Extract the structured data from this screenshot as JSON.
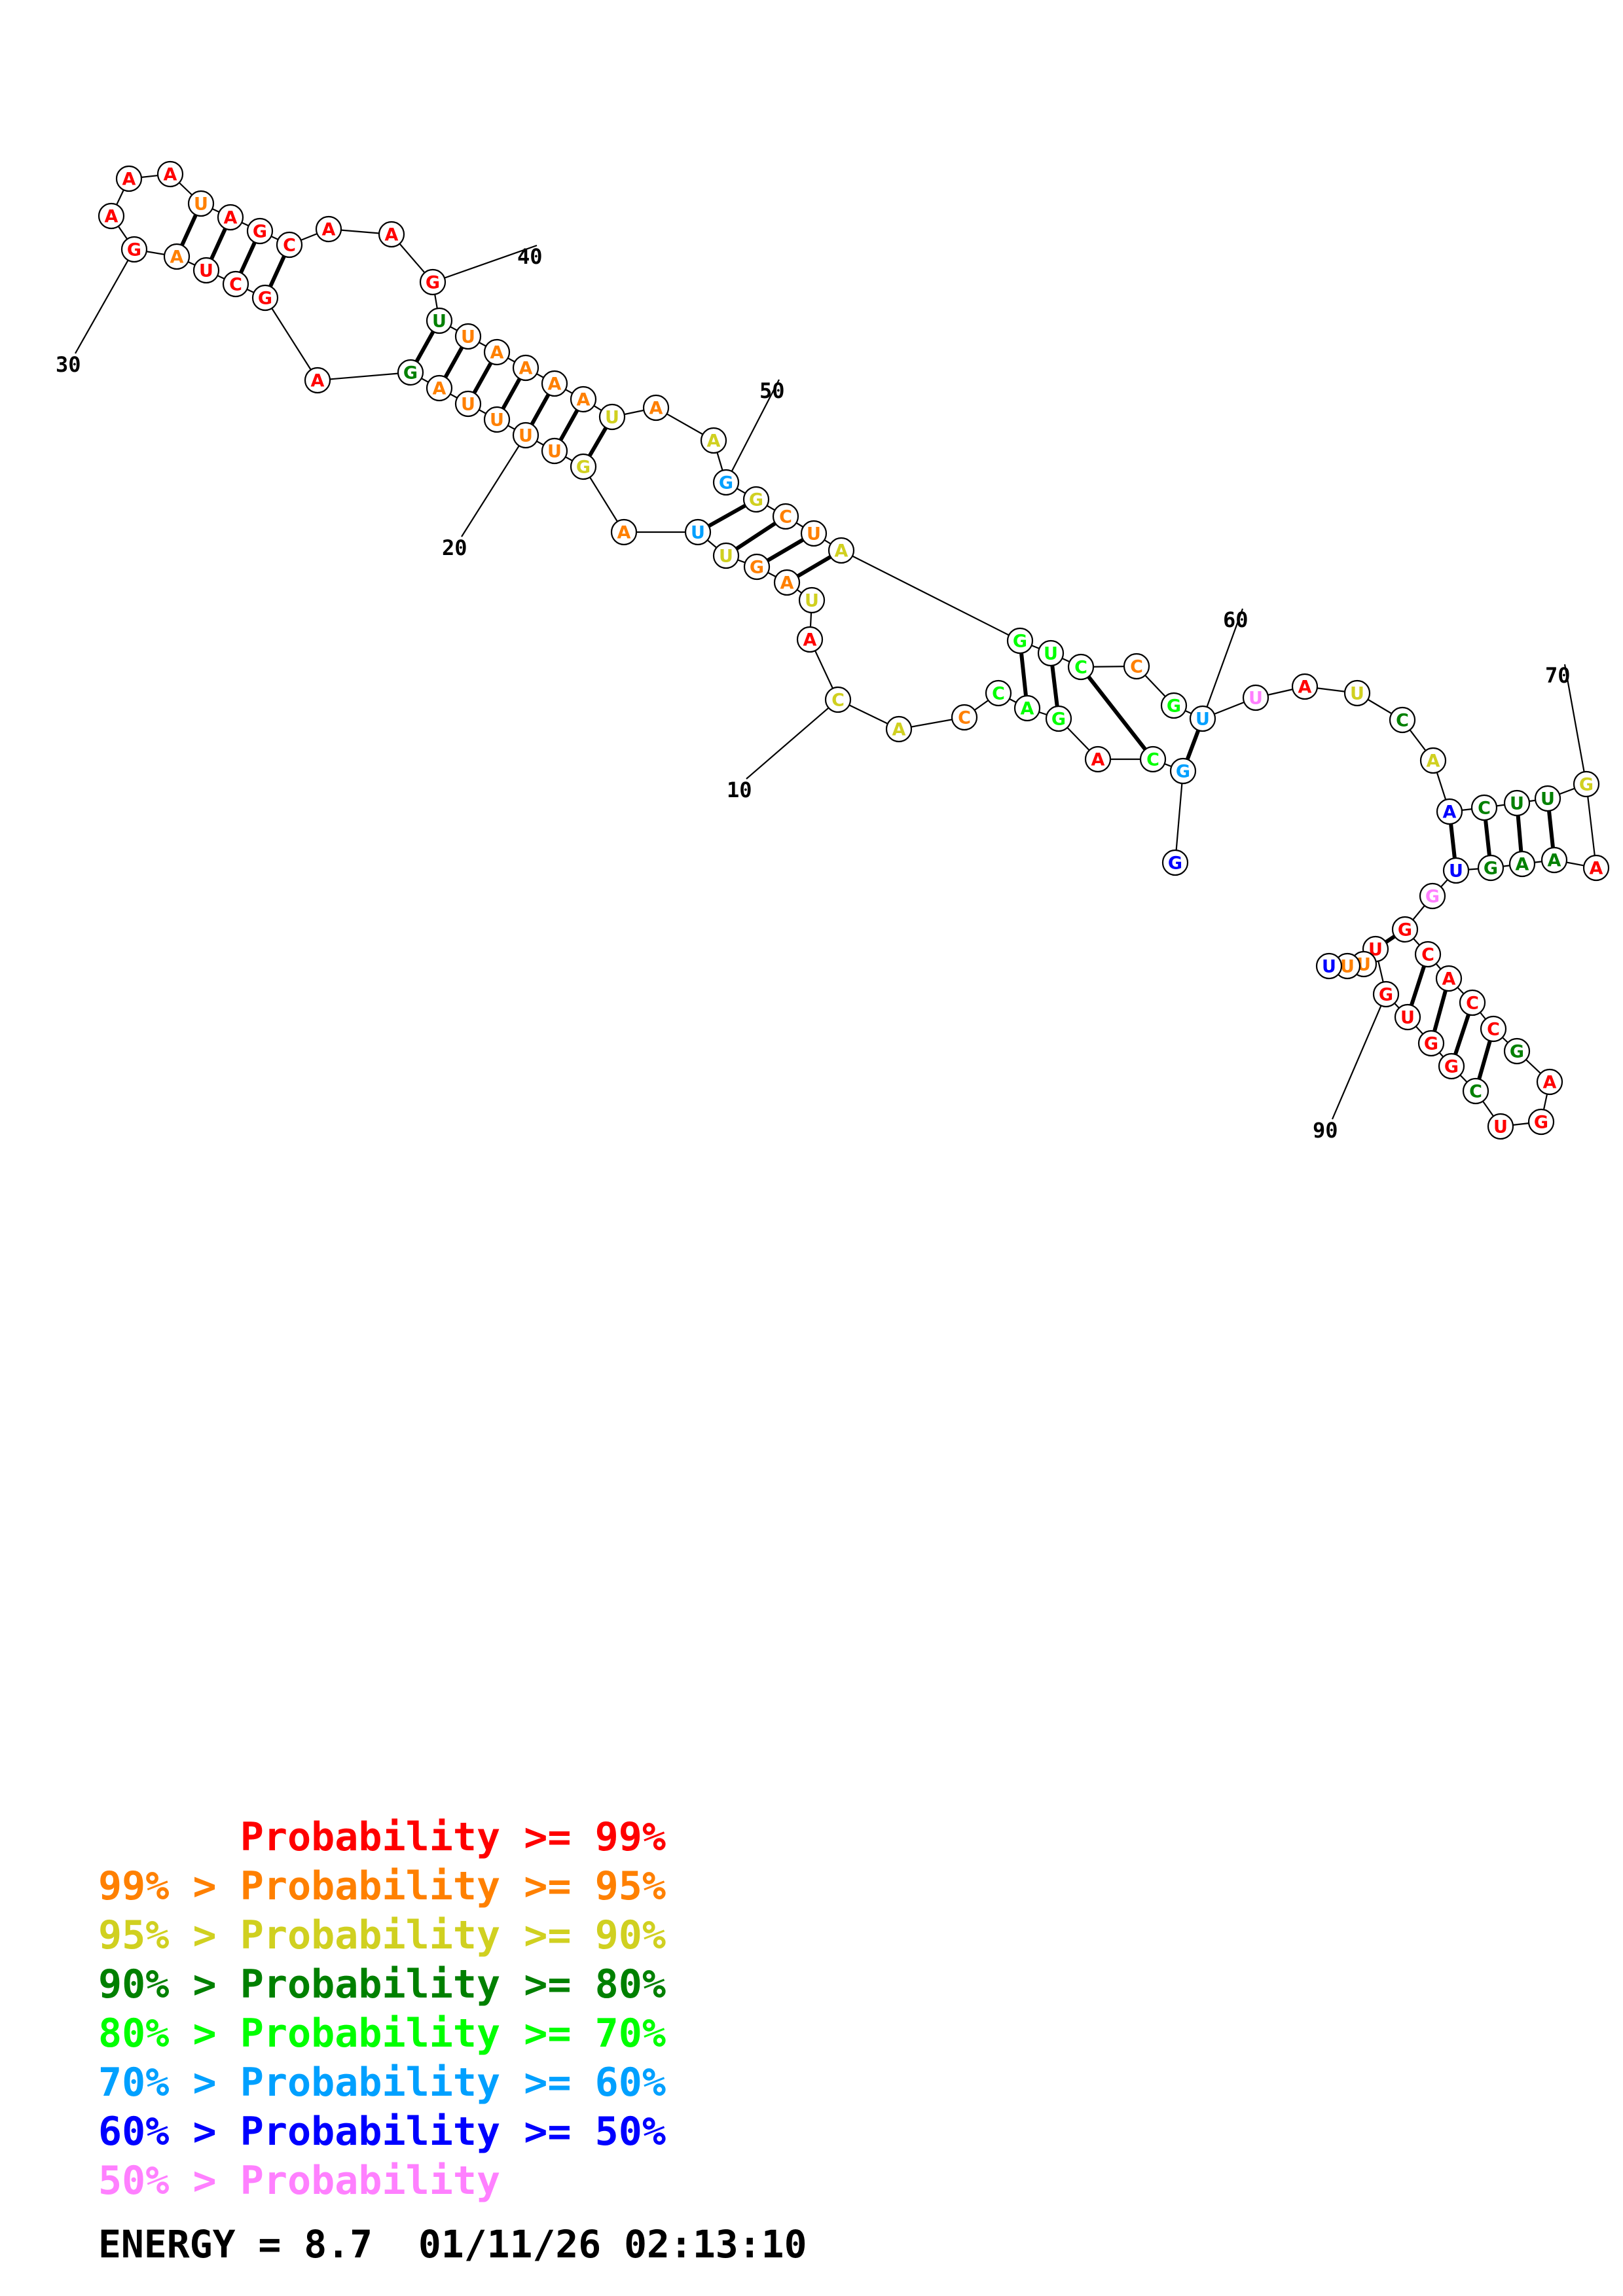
{
  "colors": {
    "c99": "#ff0000",
    "c95": "#ff8000",
    "c90": "#d0d020",
    "c80": "#008000",
    "c70": "#00ff00",
    "c60": "#00a0ff",
    "c50": "#0000ff",
    "c0": "#ff80ff"
  },
  "nucleotides": [
    {
      "n": 1,
      "base": "G",
      "p": "c50"
    },
    {
      "n": 2,
      "base": "G",
      "p": "c60"
    },
    {
      "n": 3,
      "base": "C",
      "p": "c70"
    },
    {
      "n": 4,
      "base": "A",
      "p": "c99"
    },
    {
      "n": 5,
      "base": "G",
      "p": "c70"
    },
    {
      "n": 6,
      "base": "A",
      "p": "c70"
    },
    {
      "n": 7,
      "base": "C",
      "p": "c70"
    },
    {
      "n": 8,
      "base": "C",
      "p": "c95"
    },
    {
      "n": 9,
      "base": "A",
      "p": "c90"
    },
    {
      "n": 10,
      "base": "C",
      "p": "c90"
    },
    {
      "n": 11,
      "base": "A",
      "p": "c99"
    },
    {
      "n": 12,
      "base": "U",
      "p": "c90"
    },
    {
      "n": 13,
      "base": "A",
      "p": "c95"
    },
    {
      "n": 14,
      "base": "G",
      "p": "c95"
    },
    {
      "n": 15,
      "base": "U",
      "p": "c90"
    },
    {
      "n": 16,
      "base": "U",
      "p": "c60"
    },
    {
      "n": 17,
      "base": "A",
      "p": "c95"
    },
    {
      "n": 18,
      "base": "G",
      "p": "c90"
    },
    {
      "n": 19,
      "base": "U",
      "p": "c95"
    },
    {
      "n": 20,
      "base": "U",
      "p": "c95"
    },
    {
      "n": 21,
      "base": "U",
      "p": "c95"
    },
    {
      "n": 22,
      "base": "U",
      "p": "c95"
    },
    {
      "n": 23,
      "base": "A",
      "p": "c95"
    },
    {
      "n": 24,
      "base": "G",
      "p": "c80"
    },
    {
      "n": 25,
      "base": "A",
      "p": "c99"
    },
    {
      "n": 26,
      "base": "G",
      "p": "c99"
    },
    {
      "n": 27,
      "base": "C",
      "p": "c99"
    },
    {
      "n": 28,
      "base": "U",
      "p": "c99"
    },
    {
      "n": 29,
      "base": "A",
      "p": "c95"
    },
    {
      "n": 30,
      "base": "G",
      "p": "c99"
    },
    {
      "n": 31,
      "base": "A",
      "p": "c99"
    },
    {
      "n": 32,
      "base": "A",
      "p": "c99"
    },
    {
      "n": 33,
      "base": "A",
      "p": "c99"
    },
    {
      "n": 34,
      "base": "U",
      "p": "c95"
    },
    {
      "n": 35,
      "base": "A",
      "p": "c99"
    },
    {
      "n": 36,
      "base": "G",
      "p": "c99"
    },
    {
      "n": 37,
      "base": "C",
      "p": "c99"
    },
    {
      "n": 38,
      "base": "A",
      "p": "c99"
    },
    {
      "n": 39,
      "base": "A",
      "p": "c99"
    },
    {
      "n": 40,
      "base": "G",
      "p": "c99"
    },
    {
      "n": 41,
      "base": "U",
      "p": "c80"
    },
    {
      "n": 42,
      "base": "U",
      "p": "c95"
    },
    {
      "n": 43,
      "base": "A",
      "p": "c95"
    },
    {
      "n": 44,
      "base": "A",
      "p": "c95"
    },
    {
      "n": 45,
      "base": "A",
      "p": "c95"
    },
    {
      "n": 46,
      "base": "A",
      "p": "c95"
    },
    {
      "n": 47,
      "base": "U",
      "p": "c90"
    },
    {
      "n": 48,
      "base": "A",
      "p": "c95"
    },
    {
      "n": 49,
      "base": "A",
      "p": "c90"
    },
    {
      "n": 50,
      "base": "G",
      "p": "c60"
    },
    {
      "n": 51,
      "base": "G",
      "p": "c90"
    },
    {
      "n": 52,
      "base": "C",
      "p": "c95"
    },
    {
      "n": 53,
      "base": "U",
      "p": "c95"
    },
    {
      "n": 54,
      "base": "A",
      "p": "c90"
    },
    {
      "n": 55,
      "base": "G",
      "p": "c70"
    },
    {
      "n": 56,
      "base": "U",
      "p": "c70"
    },
    {
      "n": 57,
      "base": "C",
      "p": "c70"
    },
    {
      "n": 58,
      "base": "C",
      "p": "c95"
    },
    {
      "n": 59,
      "base": "G",
      "p": "c70"
    },
    {
      "n": 60,
      "base": "U",
      "p": "c60"
    },
    {
      "n": 61,
      "base": "U",
      "p": "c0"
    },
    {
      "n": 62,
      "base": "A",
      "p": "c99"
    },
    {
      "n": 63,
      "base": "U",
      "p": "c90"
    },
    {
      "n": 64,
      "base": "C",
      "p": "c80"
    },
    {
      "n": 65,
      "base": "A",
      "p": "c90"
    },
    {
      "n": 66,
      "base": "A",
      "p": "c50"
    },
    {
      "n": 67,
      "base": "C",
      "p": "c80"
    },
    {
      "n": 68,
      "base": "U",
      "p": "c80"
    },
    {
      "n": 69,
      "base": "U",
      "p": "c80"
    },
    {
      "n": 70,
      "base": "G",
      "p": "c90"
    },
    {
      "n": 71,
      "base": "A",
      "p": "c99"
    },
    {
      "n": 72,
      "base": "A",
      "p": "c80"
    },
    {
      "n": 73,
      "base": "A",
      "p": "c80"
    },
    {
      "n": 74,
      "base": "G",
      "p": "c80"
    },
    {
      "n": 75,
      "base": "U",
      "p": "c50"
    },
    {
      "n": 76,
      "base": "G",
      "p": "c0"
    },
    {
      "n": 77,
      "base": "G",
      "p": "c99"
    },
    {
      "n": 78,
      "base": "C",
      "p": "c99"
    },
    {
      "n": 79,
      "base": "A",
      "p": "c99"
    },
    {
      "n": 80,
      "base": "C",
      "p": "c99"
    },
    {
      "n": 81,
      "base": "C",
      "p": "c99"
    },
    {
      "n": 82,
      "base": "G",
      "p": "c80"
    },
    {
      "n": 83,
      "base": "A",
      "p": "c99"
    },
    {
      "n": 84,
      "base": "G",
      "p": "c99"
    },
    {
      "n": 85,
      "base": "U",
      "p": "c99"
    },
    {
      "n": 86,
      "base": "C",
      "p": "c80"
    },
    {
      "n": 87,
      "base": "G",
      "p": "c99"
    },
    {
      "n": 88,
      "base": "G",
      "p": "c99"
    },
    {
      "n": 89,
      "base": "U",
      "p": "c99"
    },
    {
      "n": 90,
      "base": "G",
      "p": "c99"
    },
    {
      "n": 91,
      "base": "U",
      "p": "c99"
    },
    {
      "n": 92,
      "base": "U",
      "p": "c95"
    },
    {
      "n": 93,
      "base": "U",
      "p": "c95"
    },
    {
      "n": 94,
      "base": "U",
      "p": "c50"
    }
  ],
  "pairs": [
    [
      2,
      60
    ],
    [
      3,
      57
    ],
    [
      5,
      56
    ],
    [
      6,
      55
    ],
    [
      13,
      54
    ],
    [
      14,
      53
    ],
    [
      15,
      52
    ],
    [
      16,
      51
    ],
    [
      18,
      47
    ],
    [
      19,
      46
    ],
    [
      20,
      45
    ],
    [
      21,
      44
    ],
    [
      22,
      43
    ],
    [
      23,
      42
    ],
    [
      24,
      41
    ],
    [
      26,
      37
    ],
    [
      27,
      36
    ],
    [
      28,
      35
    ],
    [
      29,
      34
    ],
    [
      66,
      75
    ],
    [
      67,
      74
    ],
    [
      68,
      73
    ],
    [
      69,
      72
    ],
    [
      77,
      91
    ],
    [
      78,
      89
    ],
    [
      79,
      88
    ],
    [
      80,
      87
    ],
    [
      81,
      86
    ]
  ],
  "ticks": [
    {
      "label": "10",
      "n": 10
    },
    {
      "label": "20",
      "n": 20
    },
    {
      "label": "30",
      "n": 30
    },
    {
      "label": "40",
      "n": 40
    },
    {
      "label": "50",
      "n": 50
    },
    {
      "label": "60",
      "n": 60
    },
    {
      "label": "70",
      "n": 70
    },
    {
      "label": "90",
      "n": 90
    }
  ],
  "legend": [
    {
      "prefix": "    ",
      "rest": "Probability >= 99%",
      "color": "c99",
      "prefix_color": "c99"
    },
    {
      "prefix": "99% > ",
      "rest": "Probability >= 95%",
      "color": "c95",
      "prefix_color": "c95"
    },
    {
      "prefix": "95% > ",
      "rest": "Probability >= 90%",
      "color": "c90",
      "prefix_color": "c90"
    },
    {
      "prefix": "90% > ",
      "rest": "Probability >= 80%",
      "color": "c80",
      "prefix_color": "c80"
    },
    {
      "prefix": "80% > ",
      "rest": "Probability >= 70%",
      "color": "c70",
      "prefix_color": "c70"
    },
    {
      "prefix": "70% > ",
      "rest": "Probability >= 60%",
      "color": "c60",
      "prefix_color": "c60"
    },
    {
      "prefix": "60% > ",
      "rest": "Probability >= 50%",
      "color": "c50",
      "prefix_color": "c50"
    },
    {
      "prefix": "50% > ",
      "rest": "Probability",
      "color": "c0",
      "prefix_color": "c0"
    }
  ],
  "footer": {
    "text": "ENERGY = 8.7  01/11/26 02:13:10"
  }
}
